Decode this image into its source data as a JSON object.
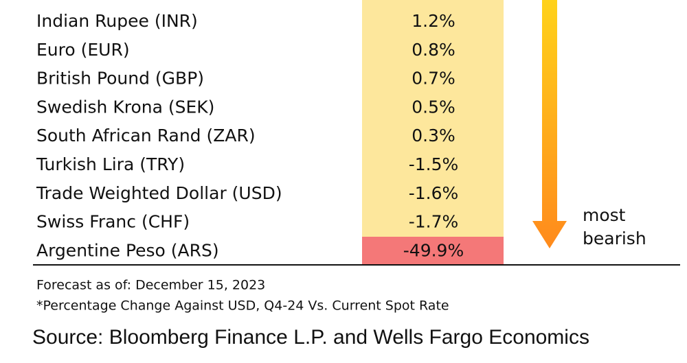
{
  "table": {
    "rows": [
      [
        "Indian Rupee (INR)",
        "1.2%"
      ],
      [
        "Euro (EUR)",
        "0.8%"
      ],
      [
        "British Pound (GBP)",
        "0.7%"
      ],
      [
        "Swedish Krona (SEK)",
        "0.5%"
      ],
      [
        "South African Rand (ZAR)",
        "0.3%"
      ],
      [
        "Turkish Lira (TRY)",
        "-1.5%"
      ],
      [
        "Trade Weighted Dollar (USD)",
        "-1.6%"
      ],
      [
        "Swiss Franc (CHF)",
        "-1.7%"
      ],
      [
        "Argentine Peso (ARS)",
        "-49.9%"
      ]
    ]
  },
  "arrow_label": [
    "most",
    "bearish"
  ],
  "notes": [
    "Forecast as of: December 15, 2023",
    "*Percentage Change Against USD, Q4-24 Vs. Current Spot Rate"
  ],
  "source": "Source: Bloomberg Finance L.P. and Wells Fargo Economics"
}
